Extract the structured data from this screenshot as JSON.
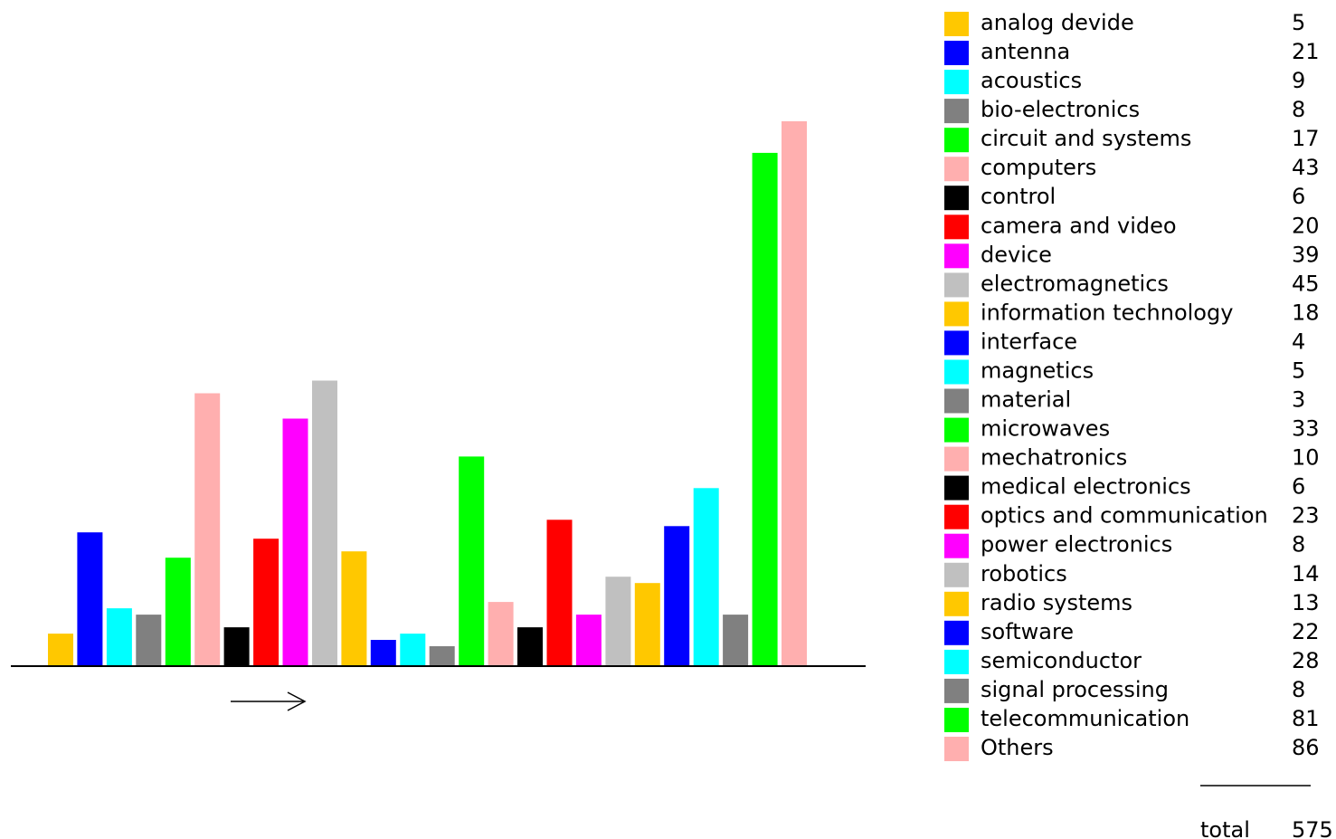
{
  "chart_data": {
    "type": "bar",
    "title": "",
    "xlabel": "",
    "ylabel": "",
    "ylim": [
      0,
      86
    ],
    "grid": false,
    "legend_position": "right",
    "categories": [
      "analog devide",
      "antenna",
      "acoustics",
      "bio-electronics",
      "circuit and systems",
      "computers",
      "control",
      "camera and video",
      "device",
      "electromagnetics",
      "information technology",
      "interface",
      "magnetics",
      "material",
      "microwaves",
      "mechatronics",
      "medical electronics",
      "optics and communication",
      "power electronics",
      "robotics",
      "radio systems",
      "software",
      "semiconductor",
      "signal processing",
      "telecommunication",
      "Others"
    ],
    "values": [
      5,
      21,
      9,
      8,
      17,
      43,
      6,
      20,
      39,
      45,
      18,
      4,
      5,
      3,
      33,
      10,
      6,
      23,
      8,
      14,
      13,
      22,
      28,
      8,
      81,
      86
    ],
    "value_labels": [
      "5",
      "21",
      "9",
      "8",
      "17",
      "43",
      "6",
      "20",
      "39",
      "45",
      "18",
      "4",
      "5",
      "3",
      "33",
      "10",
      "6",
      "23",
      "8",
      "14",
      "13",
      "22",
      "28",
      "8",
      "81",
      "86"
    ],
    "colors": [
      "#ffc800",
      "#0000ff",
      "#00ffff",
      "#808080",
      "#00ff00",
      "#ffafaf",
      "#000000",
      "#ff0000",
      "#ff00ff",
      "#c0c0c0",
      "#ffc800",
      "#0000ff",
      "#00ffff",
      "#808080",
      "#00ff00",
      "#ffafaf",
      "#000000",
      "#ff0000",
      "#ff00ff",
      "#c0c0c0",
      "#ffc800",
      "#0000ff",
      "#00ffff",
      "#808080",
      "#00ff00",
      "#ffafaf"
    ],
    "total_label": "total",
    "total_value": "575"
  }
}
